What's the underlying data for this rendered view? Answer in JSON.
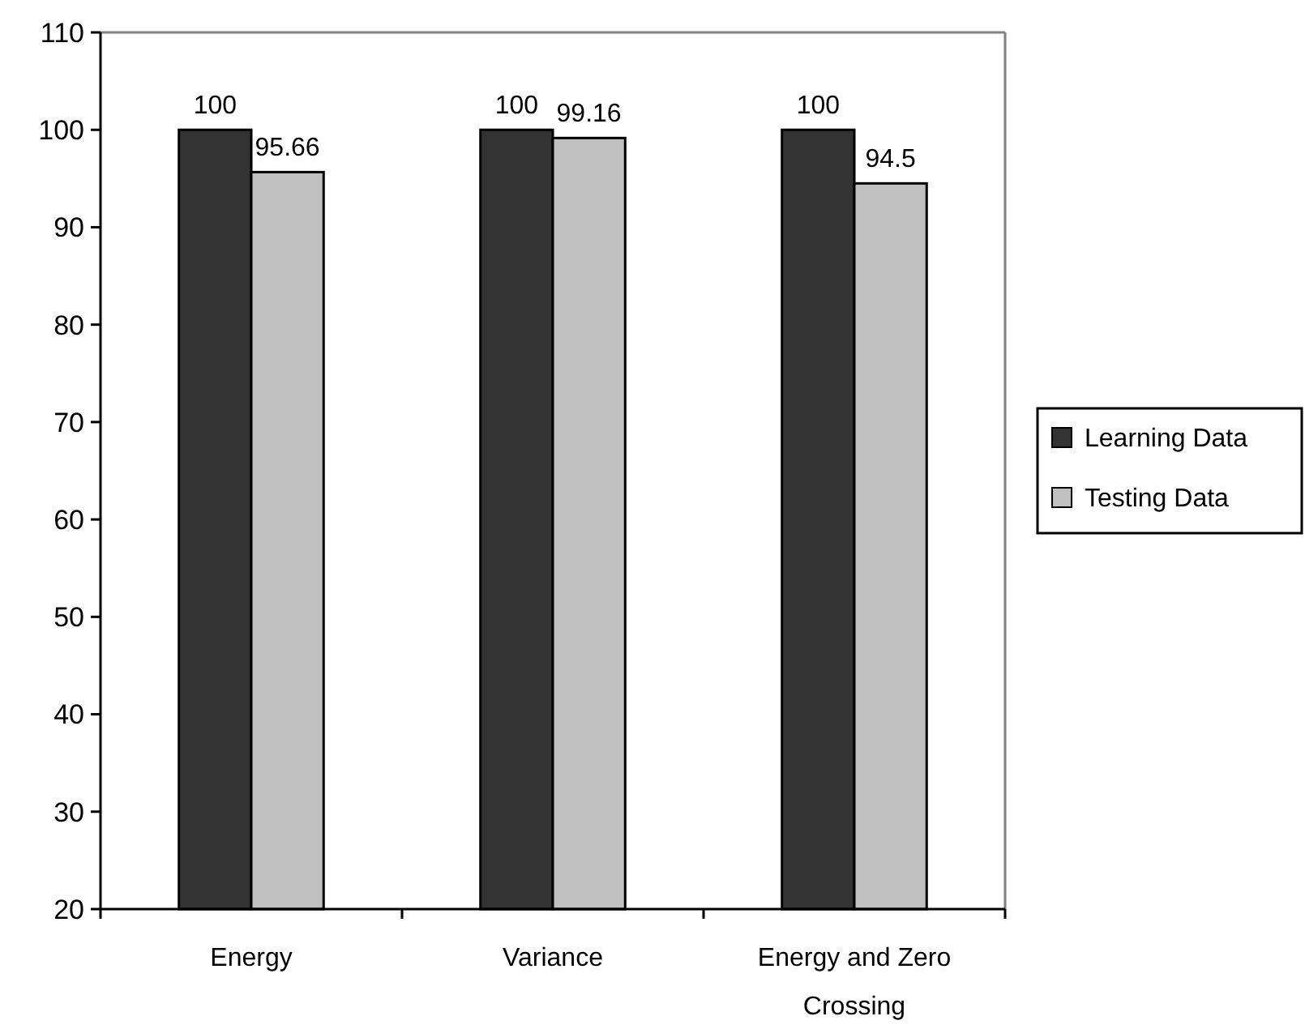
{
  "chart_data": {
    "type": "bar",
    "categories": [
      "Energy",
      "Variance",
      "Energy and Zero Crossing"
    ],
    "series": [
      {
        "name": "Learning Data",
        "color": "#333333",
        "values": [
          100,
          100,
          100
        ]
      },
      {
        "name": "Testing Data",
        "color": "#c0c0c0",
        "values": [
          95.66,
          99.16,
          94.5
        ]
      }
    ],
    "ylim": [
      20,
      110
    ],
    "yticks": [
      20,
      30,
      40,
      50,
      60,
      70,
      80,
      90,
      100,
      110
    ],
    "grid": false,
    "legend": "right",
    "data_labels": true
  }
}
